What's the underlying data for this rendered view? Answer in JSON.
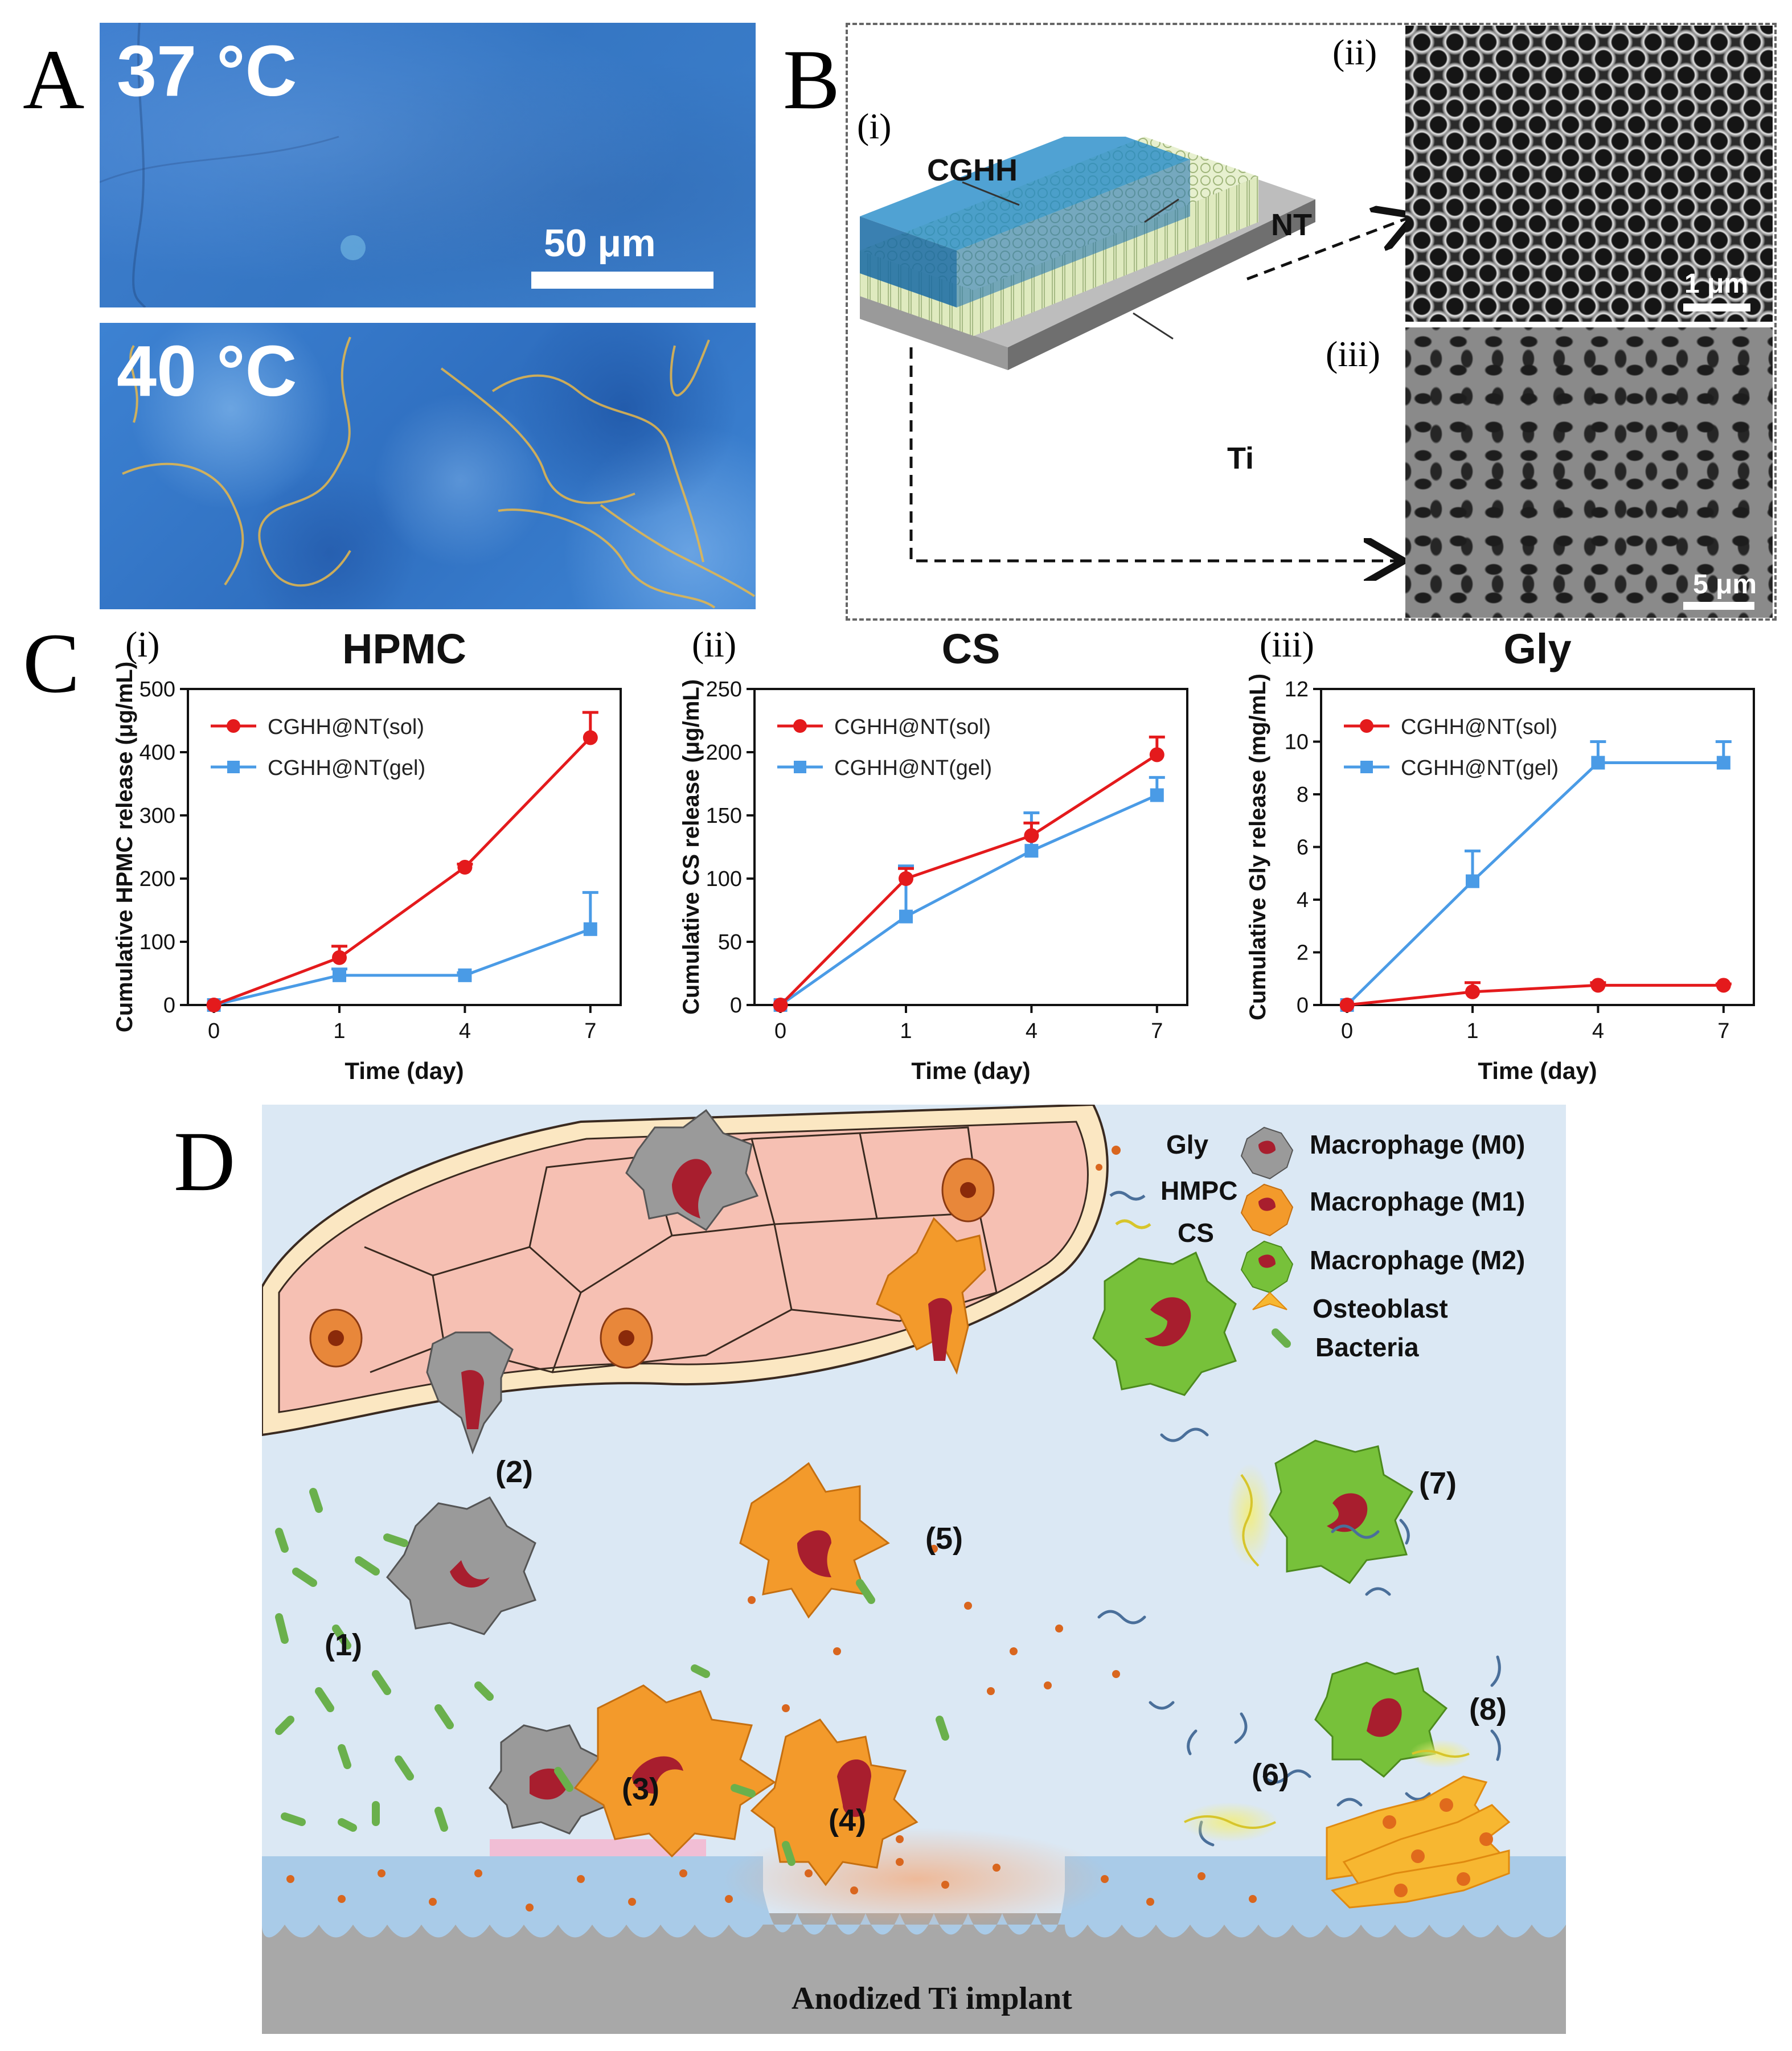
{
  "panel_labels": {
    "A": "A",
    "B": "B",
    "C": "C",
    "D": "D"
  },
  "panel_a": {
    "top_temp": "37 °C",
    "bottom_temp": "40 °C",
    "scale_bar": "50 μm"
  },
  "panel_b": {
    "sub_i": "(i)",
    "sub_ii": "(ii)",
    "sub_iii": "(iii)",
    "labels": {
      "cghh": "CGHH",
      "nt": "NT",
      "ti": "Ti"
    },
    "scale_ii": "1 μm",
    "scale_iii": "5 μm"
  },
  "chart_data": [
    {
      "type": "line",
      "panel": "(i)",
      "title": "HPMC",
      "xlabel": "Time (day)",
      "ylabel": "Cumulative HPMC release (μg/mL)",
      "x": [
        "0",
        "1",
        "4",
        "7"
      ],
      "ylim": [
        0,
        500
      ],
      "yticks": [
        "0",
        "100",
        "200",
        "300",
        "400",
        "500"
      ],
      "series": [
        {
          "name": "CGHH@NT(sol)",
          "color": "#e41a1c",
          "marker": "circle",
          "values": [
            0,
            75,
            218,
            423
          ],
          "errors": [
            0,
            18,
            5,
            40
          ]
        },
        {
          "name": "CGHH@NT(gel)",
          "color": "#4a9be6",
          "marker": "square",
          "values": [
            0,
            47,
            47,
            120
          ],
          "errors": [
            0,
            10,
            4,
            58
          ]
        }
      ]
    },
    {
      "type": "line",
      "panel": "(ii)",
      "title": "CS",
      "xlabel": "Time (day)",
      "ylabel": "Cumulative CS release (μg/mL)",
      "x": [
        "0",
        "1",
        "4",
        "7"
      ],
      "ylim": [
        0,
        250
      ],
      "yticks": [
        "0",
        "50",
        "100",
        "150",
        "200",
        "250"
      ],
      "series": [
        {
          "name": "CGHH@NT(sol)",
          "color": "#e41a1c",
          "marker": "circle",
          "values": [
            0,
            100,
            134,
            198
          ],
          "errors": [
            0,
            8,
            10,
            14
          ]
        },
        {
          "name": "CGHH@NT(gel)",
          "color": "#4a9be6",
          "marker": "square",
          "values": [
            0,
            70,
            122,
            166
          ],
          "errors": [
            0,
            40,
            30,
            14
          ]
        }
      ]
    },
    {
      "type": "line",
      "panel": "(iii)",
      "title": "Gly",
      "xlabel": "Time (day)",
      "ylabel": "Cumulative Gly release (mg/mL)",
      "x": [
        "0",
        "1",
        "4",
        "7"
      ],
      "ylim": [
        0,
        12
      ],
      "yticks": [
        "0",
        "2",
        "4",
        "6",
        "8",
        "10",
        "12"
      ],
      "series": [
        {
          "name": "CGHH@NT(sol)",
          "color": "#e41a1c",
          "marker": "circle",
          "values": [
            0,
            0.5,
            0.75,
            0.75
          ],
          "errors": [
            0,
            0.35,
            0.1,
            0.05
          ]
        },
        {
          "name": "CGHH@NT(gel)",
          "color": "#4a9be6",
          "marker": "square",
          "values": [
            0,
            4.7,
            9.2,
            9.2
          ],
          "errors": [
            0,
            1.15,
            0.8,
            0.8
          ]
        }
      ]
    }
  ],
  "panel_d": {
    "legend": {
      "gly": "Gly",
      "hmpc": "HMPC",
      "cs": "CS",
      "m0": "Macrophage (M0)",
      "m1": "Macrophage (M1)",
      "m2": "Macrophage (M2)",
      "osteoblast": "Osteoblast",
      "bacteria": "Bacteria"
    },
    "steps": [
      "(1)",
      "(2)",
      "(3)",
      "(4)",
      "(5)",
      "(6)",
      "(7)",
      "(8)"
    ],
    "implant_label": "Anodized Ti implant",
    "colors": {
      "fluid": "#dbe8f4",
      "tissue": "#f6c0b3",
      "m0": "#9a9a9a",
      "m1": "#f39a2b",
      "m2": "#77c13a",
      "bacteria": "#6ab04c",
      "gly_dot": "#d9661e",
      "implant_top": "#a9cbe8",
      "implant_base": "#a8a8a8",
      "osteoblast": "#f7b731"
    }
  }
}
